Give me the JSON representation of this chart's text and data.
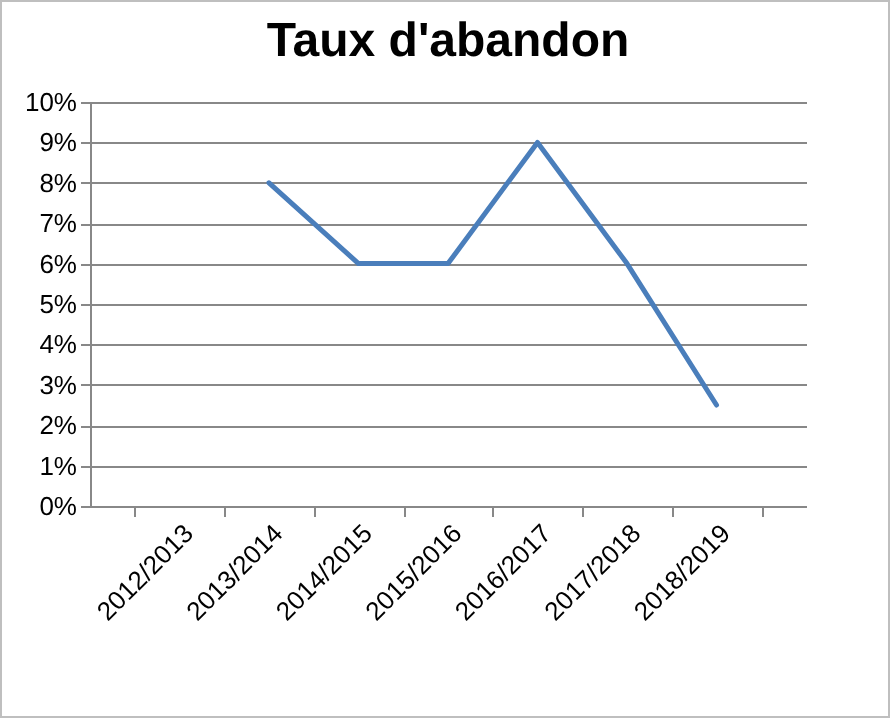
{
  "chart_data": {
    "type": "line",
    "title": "Taux d'abandon",
    "categories": [
      "2012/2013",
      "2013/2014",
      "2014/2015",
      "2015/2016",
      "2016/2017",
      "2017/2018",
      "2018/2019"
    ],
    "series": [
      {
        "color": "#4a7ebb",
        "values": [
          null,
          8,
          6,
          6,
          9,
          6,
          2.5
        ]
      }
    ],
    "ylim": [
      0,
      10
    ],
    "yticks": [
      {
        "value": 0,
        "label": "0%"
      },
      {
        "value": 1,
        "label": "1%"
      },
      {
        "value": 2,
        "label": "2%"
      },
      {
        "value": 3,
        "label": "3%"
      },
      {
        "value": 4,
        "label": "4%"
      },
      {
        "value": 5,
        "label": "5%"
      },
      {
        "value": 6,
        "label": "6%"
      },
      {
        "value": 7,
        "label": "7%"
      },
      {
        "value": 8,
        "label": "8%"
      },
      {
        "value": 9,
        "label": "9%"
      },
      {
        "value": 10,
        "label": "10%"
      }
    ],
    "grid": "y",
    "legend": false,
    "marker": "none",
    "line_style": "solid"
  }
}
